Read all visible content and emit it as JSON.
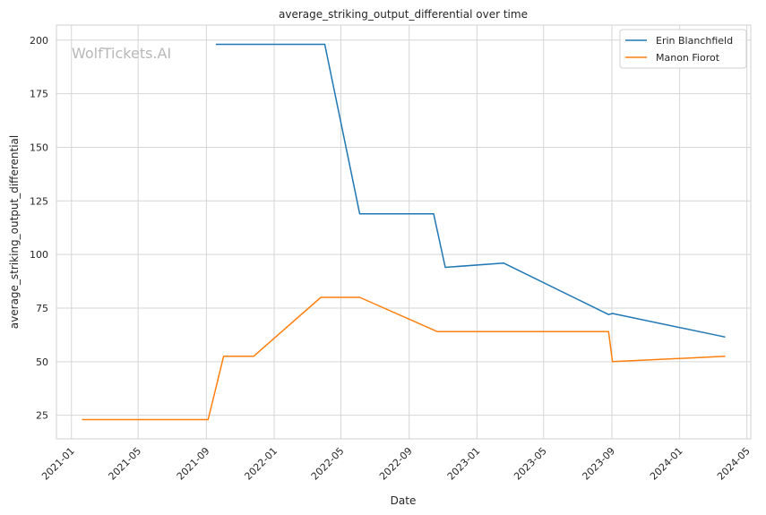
{
  "chart_data": {
    "type": "line",
    "title": "average_striking_output_differential over time",
    "xlabel": "Date",
    "ylabel": "average_striking_output_differential",
    "watermark": "WolfTickets.AI",
    "x_ticks": [
      "2021-01",
      "2021-05",
      "2021-09",
      "2022-01",
      "2022-05",
      "2022-09",
      "2023-01",
      "2023-05",
      "2023-09",
      "2024-01",
      "2024-05"
    ],
    "y_ticks": [
      25,
      50,
      75,
      100,
      125,
      150,
      175,
      200
    ],
    "xlim": [
      "2020-12-05",
      "2024-05-08"
    ],
    "ylim": [
      14,
      207
    ],
    "grid": true,
    "legend_position": "top-right",
    "series": [
      {
        "name": "Erin Blanchfield",
        "color": "#1f77b4",
        "points": [
          {
            "x": "2021-09-18",
            "y": 198
          },
          {
            "x": "2022-04-02",
            "y": 198
          },
          {
            "x": "2022-06-04",
            "y": 119
          },
          {
            "x": "2022-10-15",
            "y": 119
          },
          {
            "x": "2022-11-05",
            "y": 94
          },
          {
            "x": "2023-02-18",
            "y": 96
          },
          {
            "x": "2023-08-26",
            "y": 72
          },
          {
            "x": "2023-09-02",
            "y": 72.5
          },
          {
            "x": "2024-03-23",
            "y": 61.5
          }
        ]
      },
      {
        "name": "Manon Fiorot",
        "color": "#ff7f0e",
        "points": [
          {
            "x": "2021-01-20",
            "y": 23
          },
          {
            "x": "2021-09-04",
            "y": 23
          },
          {
            "x": "2021-10-02",
            "y": 52.5
          },
          {
            "x": "2021-11-25",
            "y": 52.5
          },
          {
            "x": "2022-03-26",
            "y": 80
          },
          {
            "x": "2022-06-04",
            "y": 80
          },
          {
            "x": "2022-10-22",
            "y": 64
          },
          {
            "x": "2023-08-26",
            "y": 64
          },
          {
            "x": "2023-09-02",
            "y": 50
          },
          {
            "x": "2024-03-23",
            "y": 52.5
          }
        ]
      }
    ]
  }
}
